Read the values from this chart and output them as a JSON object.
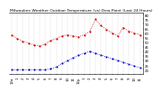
{
  "title": "Milwaukee Weather Outdoor Temperature (vs) Dew Point (Last 24 Hours)",
  "temp_x": [
    0,
    1,
    2,
    3,
    4,
    5,
    6,
    7,
    8,
    9,
    10,
    11,
    12,
    13,
    14,
    15,
    16,
    17,
    18,
    19,
    20,
    21,
    22,
    23
  ],
  "temp_y": [
    58,
    54,
    51,
    49,
    47,
    46,
    48,
    52,
    54,
    57,
    58,
    57,
    56,
    58,
    62,
    75,
    68,
    64,
    60,
    57,
    66,
    62,
    60,
    58
  ],
  "dew_x": [
    0,
    1,
    2,
    3,
    4,
    5,
    6,
    7,
    8,
    9,
    10,
    11,
    12,
    13,
    14,
    15,
    16,
    17,
    18,
    19,
    20,
    21,
    22,
    23
  ],
  "dew_y": [
    20,
    20,
    20,
    20,
    20,
    20,
    20,
    21,
    23,
    27,
    30,
    33,
    36,
    38,
    40,
    38,
    36,
    34,
    32,
    30,
    28,
    26,
    24,
    22
  ],
  "temp_color": "#cc0000",
  "dew_color": "#0000cc",
  "background_color": "#ffffff",
  "ylim": [
    15,
    82
  ],
  "xlim": [
    -0.5,
    23.5
  ],
  "ytick_positions": [
    20,
    25,
    30,
    35,
    40,
    45,
    50,
    55,
    60,
    65,
    70,
    75,
    80
  ],
  "ytick_labels": [
    "20",
    "25",
    "30",
    "35",
    "40",
    "45",
    "50",
    "55",
    "60",
    "65",
    "70",
    "75",
    "80"
  ],
  "xtick_positions": [
    0,
    1,
    2,
    3,
    4,
    5,
    6,
    7,
    8,
    9,
    10,
    11,
    12,
    13,
    14,
    15,
    16,
    17,
    18,
    19,
    20,
    21,
    22,
    23
  ],
  "xtick_labels": [
    "12a",
    "1",
    "2",
    "3",
    "4",
    "5",
    "6",
    "7",
    "8",
    "9",
    "10",
    "11",
    "12p",
    "1",
    "2",
    "3",
    "4",
    "5",
    "6",
    "7",
    "8",
    "9",
    "10",
    "11"
  ],
  "grid_color": "#bbbbbb",
  "marker_size": 1.5,
  "line_width": 0.6,
  "title_fontsize": 3.2,
  "tick_fontsize": 2.8
}
